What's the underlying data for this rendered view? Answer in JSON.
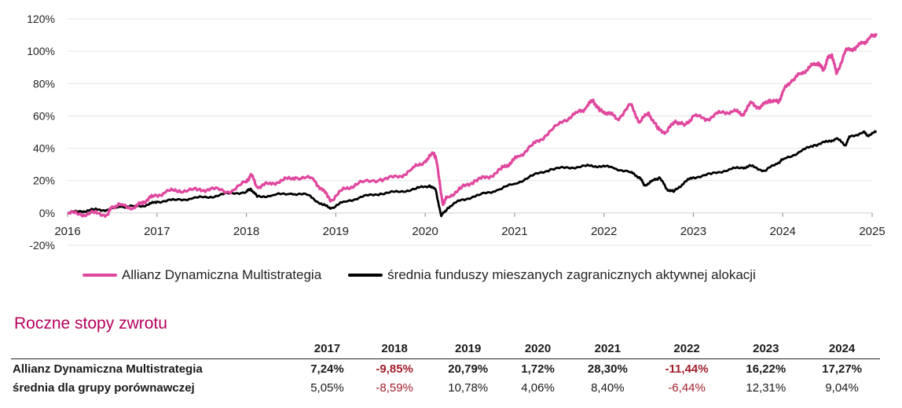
{
  "chart_data": {
    "type": "line",
    "y_axis": {
      "min": -20,
      "max": 120,
      "step": 20,
      "tick_labels": [
        "-20%",
        "0%",
        "20%",
        "40%",
        "60%",
        "80%",
        "100%",
        "120%"
      ]
    },
    "x_axis": {
      "min": 2016,
      "max": 2025,
      "tick_labels": [
        "2016",
        "2017",
        "2018",
        "2019",
        "2020",
        "2021",
        "2022",
        "2023",
        "2024",
        "2025"
      ]
    },
    "grid": "horizontal",
    "legend_position": "bottom",
    "series": [
      {
        "name": "Allianz Dynamiczna Multistrategia",
        "color": "#e0479e",
        "points": [
          [
            2016.0,
            0
          ],
          [
            2016.15,
            -1
          ],
          [
            2016.3,
            0
          ],
          [
            2016.45,
            -1
          ],
          [
            2016.5,
            4
          ],
          [
            2016.6,
            5
          ],
          [
            2016.75,
            3
          ],
          [
            2016.85,
            7
          ],
          [
            2016.95,
            10
          ],
          [
            2017.1,
            13
          ],
          [
            2017.25,
            14
          ],
          [
            2017.45,
            14
          ],
          [
            2017.6,
            15
          ],
          [
            2017.8,
            13
          ],
          [
            2018.0,
            19
          ],
          [
            2018.05,
            24
          ],
          [
            2018.12,
            16
          ],
          [
            2018.25,
            18
          ],
          [
            2018.4,
            20
          ],
          [
            2018.55,
            22
          ],
          [
            2018.75,
            21
          ],
          [
            2018.85,
            14
          ],
          [
            2018.95,
            8
          ],
          [
            2019.1,
            15
          ],
          [
            2019.25,
            18
          ],
          [
            2019.5,
            21
          ],
          [
            2019.7,
            22
          ],
          [
            2019.85,
            27
          ],
          [
            2020.0,
            32
          ],
          [
            2020.1,
            37
          ],
          [
            2020.12,
            34
          ],
          [
            2020.2,
            5
          ],
          [
            2020.25,
            10
          ],
          [
            2020.4,
            15
          ],
          [
            2020.55,
            20
          ],
          [
            2020.7,
            22
          ],
          [
            2020.85,
            27
          ],
          [
            2020.95,
            31
          ],
          [
            2021.05,
            35
          ],
          [
            2021.2,
            42
          ],
          [
            2021.35,
            48
          ],
          [
            2021.55,
            57
          ],
          [
            2021.7,
            62
          ],
          [
            2021.8,
            65
          ],
          [
            2021.88,
            70
          ],
          [
            2021.95,
            63
          ],
          [
            2022.05,
            62
          ],
          [
            2022.15,
            58
          ],
          [
            2022.3,
            67
          ],
          [
            2022.4,
            56
          ],
          [
            2022.5,
            62
          ],
          [
            2022.6,
            52
          ],
          [
            2022.7,
            50
          ],
          [
            2022.8,
            57
          ],
          [
            2022.9,
            54
          ],
          [
            2023.0,
            60
          ],
          [
            2023.15,
            58
          ],
          [
            2023.3,
            62
          ],
          [
            2023.45,
            63
          ],
          [
            2023.55,
            61
          ],
          [
            2023.65,
            68
          ],
          [
            2023.75,
            65
          ],
          [
            2023.85,
            70
          ],
          [
            2023.95,
            68
          ],
          [
            2024.0,
            75
          ],
          [
            2024.1,
            82
          ],
          [
            2024.2,
            86
          ],
          [
            2024.3,
            90
          ],
          [
            2024.4,
            93
          ],
          [
            2024.45,
            88
          ],
          [
            2024.5,
            95
          ],
          [
            2024.55,
            98
          ],
          [
            2024.6,
            86
          ],
          [
            2024.7,
            100
          ],
          [
            2024.8,
            102
          ],
          [
            2024.9,
            105
          ],
          [
            2024.97,
            108
          ],
          [
            2025.05,
            111
          ]
        ]
      },
      {
        "name": "średnia funduszy mieszanych zagranicznych aktywnej alokacji",
        "color": "#000000",
        "points": [
          [
            2016.0,
            0
          ],
          [
            2016.15,
            1
          ],
          [
            2016.3,
            2
          ],
          [
            2016.45,
            2
          ],
          [
            2016.6,
            4
          ],
          [
            2016.75,
            4
          ],
          [
            2016.9,
            5
          ],
          [
            2017.0,
            7
          ],
          [
            2017.2,
            8
          ],
          [
            2017.4,
            9
          ],
          [
            2017.6,
            10
          ],
          [
            2017.8,
            12
          ],
          [
            2018.0,
            13
          ],
          [
            2018.05,
            15
          ],
          [
            2018.12,
            10
          ],
          [
            2018.3,
            11
          ],
          [
            2018.5,
            12
          ],
          [
            2018.7,
            11
          ],
          [
            2018.85,
            5
          ],
          [
            2018.95,
            3
          ],
          [
            2019.1,
            7
          ],
          [
            2019.3,
            10
          ],
          [
            2019.5,
            12
          ],
          [
            2019.7,
            13
          ],
          [
            2019.9,
            15
          ],
          [
            2020.05,
            17
          ],
          [
            2020.12,
            14
          ],
          [
            2020.18,
            -2
          ],
          [
            2020.25,
            3
          ],
          [
            2020.4,
            8
          ],
          [
            2020.6,
            11
          ],
          [
            2020.8,
            14
          ],
          [
            2021.0,
            18
          ],
          [
            2021.2,
            23
          ],
          [
            2021.4,
            27
          ],
          [
            2021.6,
            28
          ],
          [
            2021.8,
            29
          ],
          [
            2021.95,
            29
          ],
          [
            2022.1,
            28
          ],
          [
            2022.3,
            25
          ],
          [
            2022.4,
            22
          ],
          [
            2022.45,
            17
          ],
          [
            2022.55,
            20
          ],
          [
            2022.62,
            22
          ],
          [
            2022.7,
            15
          ],
          [
            2022.78,
            13
          ],
          [
            2022.9,
            19
          ],
          [
            2023.0,
            22
          ],
          [
            2023.2,
            24
          ],
          [
            2023.4,
            27
          ],
          [
            2023.55,
            28
          ],
          [
            2023.65,
            29
          ],
          [
            2023.8,
            26
          ],
          [
            2023.95,
            31
          ],
          [
            2024.0,
            33
          ],
          [
            2024.2,
            38
          ],
          [
            2024.35,
            42
          ],
          [
            2024.5,
            44
          ],
          [
            2024.6,
            46
          ],
          [
            2024.7,
            42
          ],
          [
            2024.75,
            47
          ],
          [
            2024.9,
            50
          ],
          [
            2024.95,
            48
          ],
          [
            2025.05,
            50
          ]
        ]
      }
    ]
  },
  "section_title": "Roczne stopy zwrotu",
  "returns_table": {
    "years": [
      "2017",
      "2018",
      "2019",
      "2020",
      "2021",
      "2022",
      "2023",
      "2024"
    ],
    "rows": [
      {
        "label": "Allianz Dynamiczna Multistrategia",
        "values": [
          "7,24%",
          "-9,85%",
          "20,79%",
          "1,72%",
          "28,30%",
          "-11,44%",
          "16,22%",
          "17,27%"
        ]
      },
      {
        "label": "średnia dla grupy porównawczej",
        "values": [
          "5,05%",
          "-8,59%",
          "10,78%",
          "4,06%",
          "8,40%",
          "-6,44%",
          "12,31%",
          "9,04%"
        ]
      }
    ],
    "negative_color": "#a01e2a"
  }
}
